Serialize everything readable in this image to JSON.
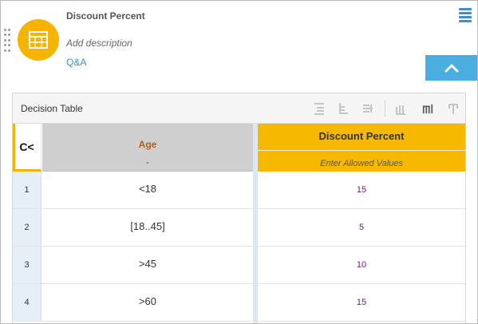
{
  "header": {
    "title": "Discount Percent",
    "description_placeholder": "Add description",
    "qa_link": "Q&A"
  },
  "icons": {
    "avatar": "table-icon",
    "menu": "hamburger-icon",
    "collapse": "chevron-up-icon",
    "toolbar": [
      "add-rule-above-icon",
      "add-rule-below-icon",
      "delete-rule-icon",
      "add-column-icon",
      "add-column-after-icon",
      "delete-column-icon"
    ]
  },
  "colors": {
    "accent_yellow": "#f5b400",
    "link_blue": "#3d8fd1",
    "collapse_blue": "#4aaee0",
    "input_label": "#b35f14",
    "output_value": "#6a1b8a"
  },
  "decision_table": {
    "title": "Decision Table",
    "hit_policy": "C<",
    "input": {
      "label": "Age",
      "allowed": "-"
    },
    "output": {
      "label": "Discount Percent",
      "allowed_placeholder": "Enter Allowed Values"
    },
    "rules": [
      {
        "num": "1",
        "condition": "<18",
        "value": "15"
      },
      {
        "num": "2",
        "condition": "[18..45]",
        "value": "5"
      },
      {
        "num": "3",
        "condition": ">45",
        "value": "10"
      },
      {
        "num": "4",
        "condition": ">60",
        "value": "15"
      }
    ]
  }
}
